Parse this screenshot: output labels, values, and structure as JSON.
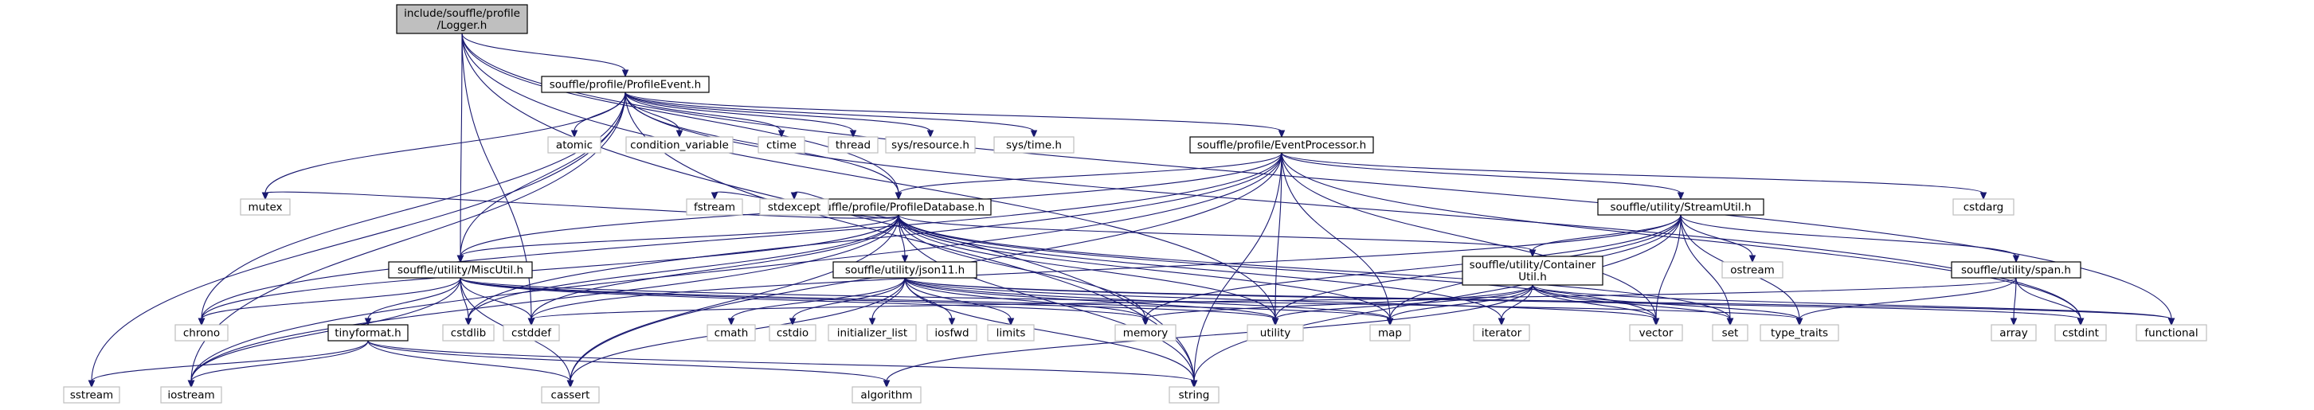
{
  "title": "include/souffle/profile/Logger.h",
  "nodes": [
    {
      "id": "logger",
      "lines": [
        "include/souffle/profile",
        "/Logger.h"
      ],
      "style": "root"
    },
    {
      "id": "profileevent",
      "lines": [
        "souffle/profile/ProfileEvent.h"
      ],
      "style": "dark"
    },
    {
      "id": "eventprocessor",
      "lines": [
        "souffle/profile/EventProcessor.h"
      ],
      "style": "dark"
    },
    {
      "id": "profiledatabase",
      "lines": [
        "souffle/profile/ProfileDatabase.h"
      ],
      "style": "dark"
    },
    {
      "id": "streamutil",
      "lines": [
        "souffle/utility/StreamUtil.h"
      ],
      "style": "dark"
    },
    {
      "id": "miscutil",
      "lines": [
        "souffle/utility/MiscUtil.h"
      ],
      "style": "dark"
    },
    {
      "id": "json11",
      "lines": [
        "souffle/utility/json11.h"
      ],
      "style": "dark"
    },
    {
      "id": "containerutil",
      "lines": [
        "souffle/utility/Container",
        "Util.h"
      ],
      "style": "dark"
    },
    {
      "id": "span",
      "lines": [
        "souffle/utility/span.h"
      ],
      "style": "dark"
    },
    {
      "id": "tinyformat",
      "lines": [
        "tinyformat.h"
      ],
      "style": "dark"
    },
    {
      "id": "atomic",
      "lines": [
        "atomic"
      ],
      "style": "light"
    },
    {
      "id": "condvar",
      "lines": [
        "condition_variable"
      ],
      "style": "light"
    },
    {
      "id": "ctime",
      "lines": [
        "ctime"
      ],
      "style": "light"
    },
    {
      "id": "thread",
      "lines": [
        "thread"
      ],
      "style": "light"
    },
    {
      "id": "sysresource",
      "lines": [
        "sys/resource.h"
      ],
      "style": "light"
    },
    {
      "id": "systime",
      "lines": [
        "sys/time.h"
      ],
      "style": "light"
    },
    {
      "id": "cstdarg",
      "lines": [
        "cstdarg"
      ],
      "style": "light"
    },
    {
      "id": "mutex",
      "lines": [
        "mutex"
      ],
      "style": "light"
    },
    {
      "id": "fstream",
      "lines": [
        "fstream"
      ],
      "style": "light"
    },
    {
      "id": "stdexcept",
      "lines": [
        "stdexcept"
      ],
      "style": "light"
    },
    {
      "id": "ostream",
      "lines": [
        "ostream"
      ],
      "style": "light"
    },
    {
      "id": "chrono",
      "lines": [
        "chrono"
      ],
      "style": "light"
    },
    {
      "id": "cstdlib",
      "lines": [
        "cstdlib"
      ],
      "style": "light"
    },
    {
      "id": "cstddef",
      "lines": [
        "cstddef"
      ],
      "style": "light"
    },
    {
      "id": "cmath",
      "lines": [
        "cmath"
      ],
      "style": "light"
    },
    {
      "id": "cstdio",
      "lines": [
        "cstdio"
      ],
      "style": "light"
    },
    {
      "id": "initlist",
      "lines": [
        "initializer_list"
      ],
      "style": "light"
    },
    {
      "id": "iosfwd",
      "lines": [
        "iosfwd"
      ],
      "style": "light"
    },
    {
      "id": "limits",
      "lines": [
        "limits"
      ],
      "style": "light"
    },
    {
      "id": "memory",
      "lines": [
        "memory"
      ],
      "style": "light"
    },
    {
      "id": "utility",
      "lines": [
        "utility"
      ],
      "style": "light"
    },
    {
      "id": "map",
      "lines": [
        "map"
      ],
      "style": "light"
    },
    {
      "id": "iterator",
      "lines": [
        "iterator"
      ],
      "style": "light"
    },
    {
      "id": "vector",
      "lines": [
        "vector"
      ],
      "style": "light"
    },
    {
      "id": "set",
      "lines": [
        "set"
      ],
      "style": "light"
    },
    {
      "id": "typetraits",
      "lines": [
        "type_traits"
      ],
      "style": "light"
    },
    {
      "id": "array",
      "lines": [
        "array"
      ],
      "style": "light"
    },
    {
      "id": "cstdint",
      "lines": [
        "cstdint"
      ],
      "style": "light"
    },
    {
      "id": "functional",
      "lines": [
        "functional"
      ],
      "style": "light"
    },
    {
      "id": "sstream",
      "lines": [
        "sstream"
      ],
      "style": "light"
    },
    {
      "id": "iostream",
      "lines": [
        "iostream"
      ],
      "style": "light"
    },
    {
      "id": "cassert",
      "lines": [
        "cassert"
      ],
      "style": "light"
    },
    {
      "id": "algorithm",
      "lines": [
        "algorithm"
      ],
      "style": "light"
    },
    {
      "id": "string",
      "lines": [
        "string"
      ],
      "style": "light"
    }
  ],
  "edges": [
    [
      "logger",
      "profileevent"
    ],
    [
      "logger",
      "profiledatabase"
    ],
    [
      "logger",
      "miscutil"
    ],
    [
      "logger",
      "utility"
    ],
    [
      "logger",
      "functional"
    ],
    [
      "logger",
      "string"
    ],
    [
      "logger",
      "cstddef"
    ],
    [
      "profileevent",
      "atomic"
    ],
    [
      "profileevent",
      "condvar"
    ],
    [
      "profileevent",
      "ctime"
    ],
    [
      "profileevent",
      "thread"
    ],
    [
      "profileevent",
      "sysresource"
    ],
    [
      "profileevent",
      "systime"
    ],
    [
      "profileevent",
      "eventprocessor"
    ],
    [
      "profileevent",
      "profiledatabase"
    ],
    [
      "profileevent",
      "miscutil"
    ],
    [
      "profileevent",
      "mutex"
    ],
    [
      "profileevent",
      "chrono"
    ],
    [
      "profileevent",
      "iostream"
    ],
    [
      "profileevent",
      "sstream"
    ],
    [
      "profileevent",
      "cstdint"
    ],
    [
      "profileevent",
      "string"
    ],
    [
      "eventprocessor",
      "profiledatabase"
    ],
    [
      "eventprocessor",
      "streamutil"
    ],
    [
      "eventprocessor",
      "miscutil"
    ],
    [
      "eventprocessor",
      "cstdarg"
    ],
    [
      "eventprocessor",
      "cstdint"
    ],
    [
      "eventprocessor",
      "map"
    ],
    [
      "eventprocessor",
      "string"
    ],
    [
      "eventprocessor",
      "vector"
    ],
    [
      "eventprocessor",
      "utility"
    ],
    [
      "eventprocessor",
      "cassert"
    ],
    [
      "eventprocessor",
      "chrono"
    ],
    [
      "eventprocessor",
      "iostream"
    ],
    [
      "eventprocessor",
      "cstdlib"
    ],
    [
      "profiledatabase",
      "json11"
    ],
    [
      "profiledatabase",
      "miscutil"
    ],
    [
      "profiledatabase",
      "containerutil"
    ],
    [
      "profiledatabase",
      "mutex"
    ],
    [
      "profiledatabase",
      "fstream"
    ],
    [
      "profiledatabase",
      "stdexcept"
    ],
    [
      "profiledatabase",
      "chrono"
    ],
    [
      "profiledatabase",
      "cstddef"
    ],
    [
      "profiledatabase",
      "cstdlib"
    ],
    [
      "profiledatabase",
      "memory"
    ],
    [
      "profiledatabase",
      "utility"
    ],
    [
      "profiledatabase",
      "map"
    ],
    [
      "profiledatabase",
      "iterator"
    ],
    [
      "profiledatabase",
      "vector"
    ],
    [
      "profiledatabase",
      "set"
    ],
    [
      "profiledatabase",
      "string"
    ],
    [
      "profiledatabase",
      "iostream"
    ],
    [
      "profiledatabase",
      "cassert"
    ],
    [
      "streamutil",
      "containerutil"
    ],
    [
      "streamutil",
      "span"
    ],
    [
      "streamutil",
      "ostream"
    ],
    [
      "streamutil",
      "vector"
    ],
    [
      "streamutil",
      "set"
    ],
    [
      "streamutil",
      "map"
    ],
    [
      "streamutil",
      "memory"
    ],
    [
      "streamutil",
      "utility"
    ],
    [
      "streamutil",
      "typetraits"
    ],
    [
      "streamutil",
      "string"
    ],
    [
      "streamutil",
      "cstddef"
    ],
    [
      "miscutil",
      "tinyformat"
    ],
    [
      "miscutil",
      "chrono"
    ],
    [
      "miscutil",
      "cstdlib"
    ],
    [
      "miscutil",
      "cstddef"
    ],
    [
      "miscutil",
      "iostream"
    ],
    [
      "miscutil",
      "cassert"
    ],
    [
      "miscutil",
      "memory"
    ],
    [
      "miscutil",
      "utility"
    ],
    [
      "miscutil",
      "map"
    ],
    [
      "miscutil",
      "typetraits"
    ],
    [
      "json11",
      "cmath"
    ],
    [
      "json11",
      "cstdio"
    ],
    [
      "json11",
      "initlist"
    ],
    [
      "json11",
      "iosfwd"
    ],
    [
      "json11",
      "limits"
    ],
    [
      "json11",
      "memory"
    ],
    [
      "json11",
      "utility"
    ],
    [
      "json11",
      "map"
    ],
    [
      "json11",
      "vector"
    ],
    [
      "json11",
      "string"
    ],
    [
      "json11",
      "cassert"
    ],
    [
      "json11",
      "cstdint"
    ],
    [
      "json11",
      "functional"
    ],
    [
      "containerutil",
      "utility"
    ],
    [
      "containerutil",
      "map"
    ],
    [
      "containerutil",
      "iterator"
    ],
    [
      "containerutil",
      "vector"
    ],
    [
      "containerutil",
      "set"
    ],
    [
      "containerutil",
      "typetraits"
    ],
    [
      "containerutil",
      "memory"
    ],
    [
      "containerutil",
      "algorithm"
    ],
    [
      "containerutil",
      "functional"
    ],
    [
      "span",
      "array"
    ],
    [
      "span",
      "cstdint"
    ],
    [
      "span",
      "typetraits"
    ],
    [
      "span",
      "cstddef"
    ],
    [
      "tinyformat",
      "sstream"
    ],
    [
      "tinyformat",
      "iostream"
    ],
    [
      "tinyformat",
      "cassert"
    ],
    [
      "tinyformat",
      "algorithm"
    ],
    [
      "tinyformat",
      "string"
    ]
  ]
}
